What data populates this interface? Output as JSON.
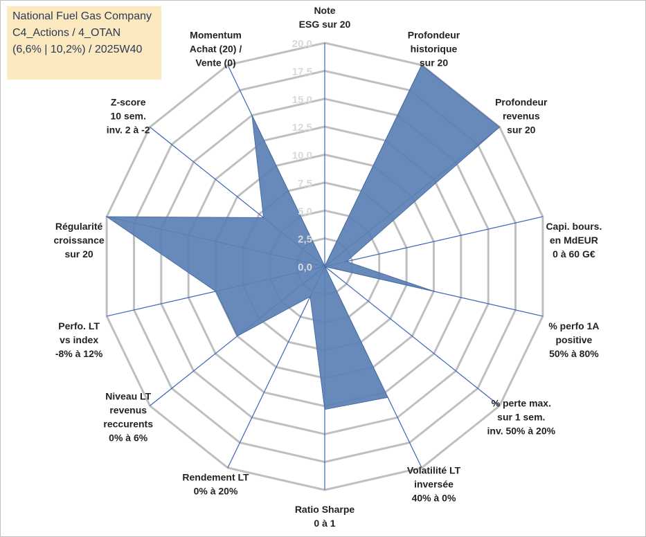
{
  "title": {
    "lines": [
      "National Fuel Gas Company",
      "C4_Actions / 4_OTAN",
      "(6,6% | 10,2%) / 2025W40"
    ]
  },
  "colors": {
    "fill": "#5b80b4",
    "stroke": "#4a6fa5",
    "grid": "#bfbfbf",
    "spoke": "#3b63b7",
    "title_bg": "#fde9c0"
  },
  "chart_data": {
    "type": "radar",
    "rmin": 0,
    "rmax": 20,
    "tick_values": [
      0,
      2.5,
      5,
      7.5,
      10,
      12.5,
      15,
      17.5,
      20
    ],
    "tick_labels": [
      "0,0",
      "2,5",
      "5,0",
      "7,5",
      "10,0",
      "12,5",
      "15,0",
      "17,5",
      "20,0"
    ],
    "axes": [
      {
        "label": [
          "Note",
          "ESG sur 20"
        ],
        "value": 0
      },
      {
        "label": [
          "Profondeur",
          "historique",
          "sur 20"
        ],
        "value": 20
      },
      {
        "label": [
          "Profondeur",
          "revenus",
          "sur 20"
        ],
        "value": 20
      },
      {
        "label": [
          "Capi. bours.",
          "en MdEUR",
          "0 à 60 G€"
        ],
        "value": 2
      },
      {
        "label": [
          "% perfo 1A",
          "positive",
          "50% à 80%"
        ],
        "value": 10
      },
      {
        "label": [
          "% perte max.",
          "sur 1 sem.",
          "inv. 50% à 20%"
        ],
        "value": 0
      },
      {
        "label": [
          "Volatilité LT",
          "inversée",
          "40% à 0%"
        ],
        "value": 13
      },
      {
        "label": [
          "Ratio Sharpe",
          "0 à 1"
        ],
        "value": 12.8
      },
      {
        "label": [
          "Rendement LT",
          "0% à 20%"
        ],
        "value": 3
      },
      {
        "label": [
          "Niveau LT",
          "revenus",
          "reccurents",
          "0% à 6%"
        ],
        "value": 10
      },
      {
        "label": [
          "Perfo. LT",
          "vs index",
          "-8% à 12%"
        ],
        "value": 10
      },
      {
        "label": [
          "Régularité",
          "croissance",
          "sur 20"
        ],
        "value": 20
      },
      {
        "label": [
          "Z-score",
          "10 sem.",
          "inv. 2 à -2"
        ],
        "value": 7
      },
      {
        "label": [
          "Momentum",
          "Achat (20) /",
          "Vente (0)"
        ],
        "value": 15
      }
    ]
  }
}
